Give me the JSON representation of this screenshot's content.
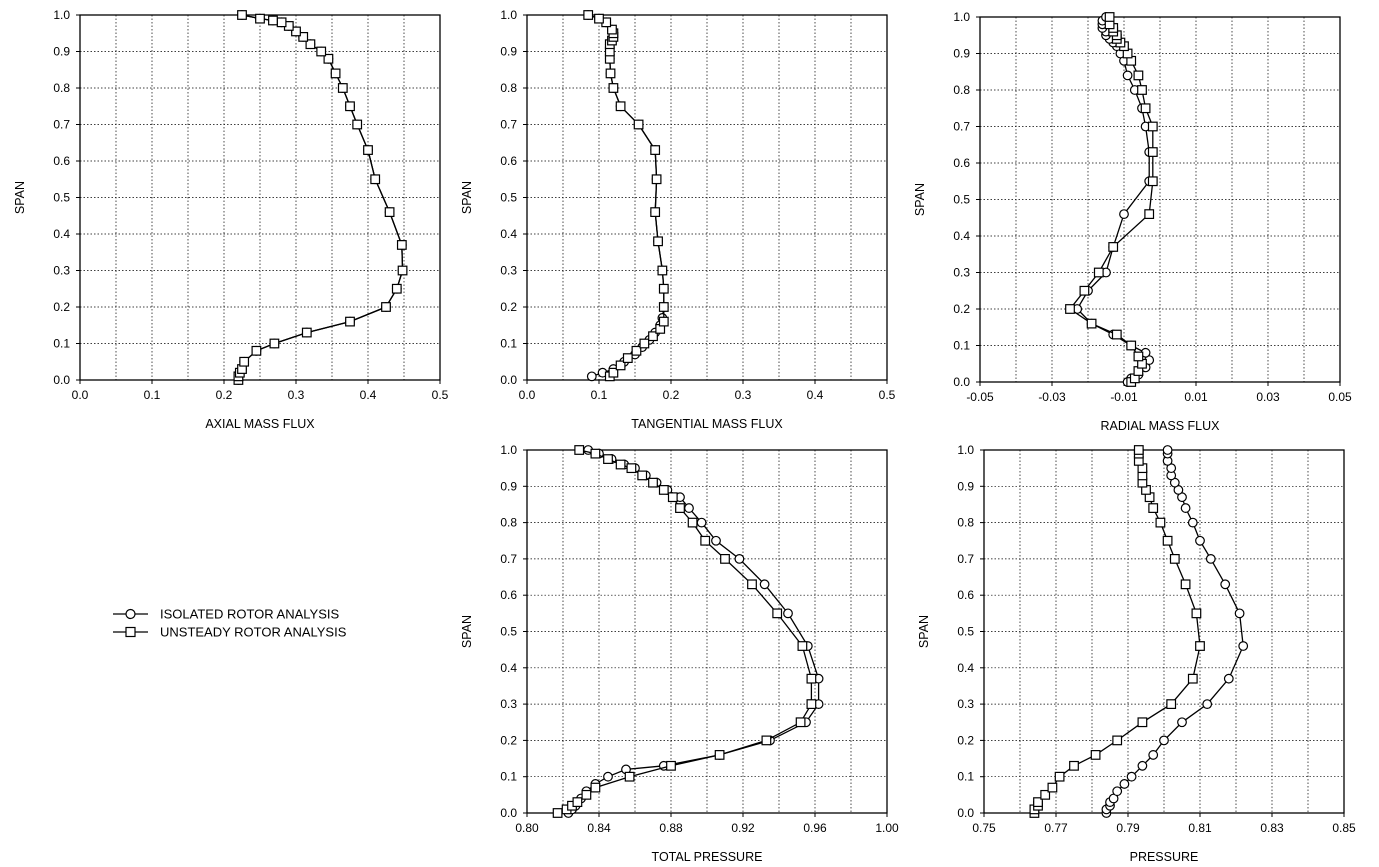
{
  "legend": {
    "entries": [
      {
        "label": "ISOLATED ROTOR ANALYSIS",
        "marker": "circle"
      },
      {
        "label": "UNSTEADY ROTOR ANALYSIS",
        "marker": "square"
      }
    ]
  },
  "colors": {
    "line": "#000000",
    "grid": "#000000",
    "background": "#ffffff"
  },
  "chart_data": [
    {
      "type": "line",
      "xlabel": "AXIAL MASS FLUX",
      "ylabel": "SPAN",
      "xlim": [
        0.0,
        0.5
      ],
      "ylim": [
        0.0,
        1.0
      ],
      "xticks": [
        "0.0",
        "0.1",
        "0.2",
        "0.3",
        "0.4",
        "0.5"
      ],
      "yticks": [
        "0.0",
        "0.1",
        "0.2",
        "0.3",
        "0.4",
        "0.5",
        "0.6",
        "0.7",
        "0.8",
        "0.9",
        "1.0"
      ],
      "grid": true,
      "series": [
        {
          "marker": "circle",
          "x": [
            0.22,
            0.22,
            0.222,
            0.225,
            0.228,
            0.245,
            0.27,
            0.315,
            0.375,
            0.425,
            0.44,
            0.448,
            0.447,
            0.43,
            0.41,
            0.4,
            0.385,
            0.375,
            0.365,
            0.355,
            0.345,
            0.335,
            0.32,
            0.31,
            0.3,
            0.29,
            0.28,
            0.268,
            0.25,
            0.225
          ],
          "y": [
            0.0,
            0.01,
            0.02,
            0.03,
            0.05,
            0.08,
            0.1,
            0.13,
            0.16,
            0.2,
            0.25,
            0.3,
            0.37,
            0.46,
            0.55,
            0.63,
            0.7,
            0.75,
            0.8,
            0.84,
            0.88,
            0.9,
            0.92,
            0.94,
            0.955,
            0.97,
            0.98,
            0.985,
            0.99,
            1.0
          ]
        },
        {
          "marker": "square",
          "x": [
            0.22,
            0.22,
            0.222,
            0.225,
            0.228,
            0.245,
            0.27,
            0.315,
            0.375,
            0.425,
            0.44,
            0.448,
            0.447,
            0.43,
            0.41,
            0.4,
            0.385,
            0.375,
            0.365,
            0.355,
            0.345,
            0.335,
            0.32,
            0.31,
            0.3,
            0.29,
            0.28,
            0.268,
            0.25,
            0.225
          ],
          "y": [
            0.0,
            0.01,
            0.02,
            0.03,
            0.05,
            0.08,
            0.1,
            0.13,
            0.16,
            0.2,
            0.25,
            0.3,
            0.37,
            0.46,
            0.55,
            0.63,
            0.7,
            0.75,
            0.8,
            0.84,
            0.88,
            0.9,
            0.92,
            0.94,
            0.955,
            0.97,
            0.98,
            0.985,
            0.99,
            1.0
          ]
        }
      ]
    },
    {
      "type": "line",
      "xlabel": "TANGENTIAL MASS FLUX",
      "ylabel": "SPAN",
      "xlim": [
        0.0,
        0.5
      ],
      "ylim": [
        0.0,
        1.0
      ],
      "xticks": [
        "0.0",
        "0.1",
        "0.2",
        "0.3",
        "0.4",
        "0.5"
      ],
      "yticks": [
        "0.0",
        "0.1",
        "0.2",
        "0.3",
        "0.4",
        "0.5",
        "0.6",
        "0.7",
        "0.8",
        "0.9",
        "1.0"
      ],
      "grid": true,
      "series": [
        {
          "marker": "circle",
          "x": [
            0.09,
            0.105,
            0.12,
            0.135,
            0.15,
            0.16,
            0.17,
            0.178,
            0.185,
            0.188,
            0.19,
            0.19,
            0.188,
            0.182,
            0.178,
            0.18,
            0.178,
            0.155,
            0.13,
            0.12,
            0.116,
            0.115,
            0.115,
            0.115,
            0.118,
            0.12,
            0.12,
            0.118,
            0.11,
            0.1,
            0.085
          ],
          "y": [
            0.01,
            0.02,
            0.03,
            0.05,
            0.07,
            0.09,
            0.11,
            0.13,
            0.15,
            0.17,
            0.2,
            0.25,
            0.3,
            0.38,
            0.46,
            0.55,
            0.63,
            0.7,
            0.75,
            0.8,
            0.84,
            0.88,
            0.9,
            0.92,
            0.93,
            0.94,
            0.95,
            0.96,
            0.98,
            0.99,
            1.0
          ]
        },
        {
          "marker": "square",
          "x": [
            0.115,
            0.12,
            0.13,
            0.14,
            0.152,
            0.163,
            0.175,
            0.185,
            0.19,
            0.19,
            0.19,
            0.188,
            0.182,
            0.178,
            0.18,
            0.178,
            0.155,
            0.13,
            0.12,
            0.116,
            0.115,
            0.115,
            0.115,
            0.118,
            0.12,
            0.12,
            0.118,
            0.11,
            0.1,
            0.085
          ],
          "y": [
            0.01,
            0.02,
            0.04,
            0.06,
            0.08,
            0.1,
            0.12,
            0.14,
            0.16,
            0.2,
            0.25,
            0.3,
            0.38,
            0.46,
            0.55,
            0.63,
            0.7,
            0.75,
            0.8,
            0.84,
            0.88,
            0.9,
            0.92,
            0.93,
            0.94,
            0.95,
            0.96,
            0.98,
            0.99,
            1.0
          ]
        }
      ]
    },
    {
      "type": "line",
      "xlabel": "RADIAL MASS FLUX",
      "ylabel": "SPAN",
      "xlim": [
        -0.05,
        0.05
      ],
      "ylim": [
        0.0,
        1.0
      ],
      "xticks": [
        "-0.05",
        "-0.03",
        "-0.01",
        "0.01",
        "0.03",
        "0.05"
      ],
      "yticks": [
        "0.0",
        "0.1",
        "0.2",
        "0.3",
        "0.4",
        "0.5",
        "0.6",
        "0.7",
        "0.8",
        "0.9",
        "1.0"
      ],
      "grid": true,
      "series": [
        {
          "marker": "circle",
          "x": [
            -0.009,
            -0.008,
            -0.006,
            -0.004,
            -0.003,
            -0.004,
            -0.008,
            -0.013,
            -0.019,
            -0.023,
            -0.02,
            -0.015,
            -0.013,
            -0.01,
            -0.003,
            -0.003,
            -0.004,
            -0.005,
            -0.007,
            -0.009,
            -0.01,
            -0.011,
            -0.012,
            -0.013,
            -0.014,
            -0.015,
            -0.015,
            -0.016,
            -0.016,
            -0.016,
            -0.015
          ],
          "y": [
            0.0,
            0.01,
            0.02,
            0.04,
            0.06,
            0.08,
            0.1,
            0.13,
            0.16,
            0.2,
            0.25,
            0.3,
            0.37,
            0.46,
            0.55,
            0.63,
            0.7,
            0.75,
            0.8,
            0.84,
            0.88,
            0.9,
            0.92,
            0.93,
            0.94,
            0.95,
            0.96,
            0.97,
            0.98,
            0.99,
            1.0
          ]
        },
        {
          "marker": "square",
          "x": [
            -0.008,
            -0.007,
            -0.006,
            -0.005,
            -0.006,
            -0.008,
            -0.012,
            -0.019,
            -0.025,
            -0.021,
            -0.017,
            -0.013,
            -0.003,
            -0.002,
            -0.002,
            -0.002,
            -0.004,
            -0.005,
            -0.006,
            -0.008,
            -0.009,
            -0.01,
            -0.011,
            -0.012,
            -0.012,
            -0.013,
            -0.013,
            -0.014,
            -0.014
          ],
          "y": [
            0.0,
            0.01,
            0.03,
            0.05,
            0.07,
            0.1,
            0.13,
            0.16,
            0.2,
            0.25,
            0.3,
            0.37,
            0.46,
            0.55,
            0.63,
            0.7,
            0.75,
            0.8,
            0.84,
            0.88,
            0.9,
            0.92,
            0.93,
            0.94,
            0.95,
            0.96,
            0.97,
            0.98,
            1.0
          ]
        }
      ]
    },
    {
      "type": "line",
      "xlabel": "TOTAL PRESSURE",
      "ylabel": "SPAN",
      "xlim": [
        0.8,
        1.0
      ],
      "ylim": [
        0.0,
        1.0
      ],
      "xticks": [
        "0.80",
        "0.84",
        "0.88",
        "0.92",
        "0.96",
        "1.00"
      ],
      "yticks": [
        "0.0",
        "0.1",
        "0.2",
        "0.3",
        "0.4",
        "0.5",
        "0.6",
        "0.7",
        "0.8",
        "0.9",
        "1.0"
      ],
      "grid": true,
      "series": [
        {
          "marker": "circle",
          "x": [
            0.823,
            0.825,
            0.827,
            0.83,
            0.833,
            0.838,
            0.845,
            0.855,
            0.876,
            0.907,
            0.935,
            0.955,
            0.962,
            0.962,
            0.956,
            0.945,
            0.932,
            0.918,
            0.905,
            0.897,
            0.89,
            0.885,
            0.878,
            0.872,
            0.866,
            0.86,
            0.854,
            0.847,
            0.84,
            0.834
          ],
          "y": [
            0.0,
            0.01,
            0.02,
            0.04,
            0.06,
            0.08,
            0.1,
            0.12,
            0.13,
            0.16,
            0.2,
            0.25,
            0.3,
            0.37,
            0.46,
            0.55,
            0.63,
            0.7,
            0.75,
            0.8,
            0.84,
            0.87,
            0.89,
            0.91,
            0.93,
            0.95,
            0.96,
            0.975,
            0.99,
            1.0
          ]
        },
        {
          "marker": "square",
          "x": [
            0.817,
            0.822,
            0.825,
            0.828,
            0.833,
            0.838,
            0.857,
            0.88,
            0.907,
            0.933,
            0.952,
            0.958,
            0.958,
            0.953,
            0.939,
            0.925,
            0.91,
            0.899,
            0.892,
            0.885,
            0.881,
            0.876,
            0.87,
            0.864,
            0.858,
            0.852,
            0.845,
            0.838,
            0.829
          ],
          "y": [
            0.0,
            0.01,
            0.02,
            0.03,
            0.05,
            0.07,
            0.1,
            0.13,
            0.16,
            0.2,
            0.25,
            0.3,
            0.37,
            0.46,
            0.55,
            0.63,
            0.7,
            0.75,
            0.8,
            0.84,
            0.87,
            0.89,
            0.91,
            0.93,
            0.95,
            0.96,
            0.975,
            0.99,
            1.0
          ]
        }
      ]
    },
    {
      "type": "line",
      "xlabel": "PRESSURE",
      "ylabel": "SPAN",
      "xlim": [
        0.75,
        0.85
      ],
      "ylim": [
        0.0,
        1.0
      ],
      "xticks": [
        "0.75",
        "0.77",
        "0.79",
        "0.81",
        "0.83",
        "0.85"
      ],
      "yticks": [
        "0.0",
        "0.1",
        "0.2",
        "0.3",
        "0.4",
        "0.5",
        "0.6",
        "0.7",
        "0.8",
        "0.9",
        "1.0"
      ],
      "grid": true,
      "series": [
        {
          "marker": "circle",
          "x": [
            0.784,
            0.784,
            0.785,
            0.785,
            0.786,
            0.787,
            0.789,
            0.791,
            0.794,
            0.797,
            0.8,
            0.805,
            0.812,
            0.818,
            0.822,
            0.821,
            0.817,
            0.813,
            0.81,
            0.808,
            0.806,
            0.805,
            0.804,
            0.803,
            0.802,
            0.802,
            0.801,
            0.801,
            0.801
          ],
          "y": [
            0.0,
            0.01,
            0.02,
            0.03,
            0.04,
            0.06,
            0.08,
            0.1,
            0.13,
            0.16,
            0.2,
            0.25,
            0.3,
            0.37,
            0.46,
            0.55,
            0.63,
            0.7,
            0.75,
            0.8,
            0.84,
            0.87,
            0.89,
            0.91,
            0.93,
            0.95,
            0.97,
            0.99,
            1.0
          ]
        },
        {
          "marker": "square",
          "x": [
            0.764,
            0.764,
            0.765,
            0.765,
            0.767,
            0.769,
            0.771,
            0.775,
            0.781,
            0.787,
            0.794,
            0.802,
            0.808,
            0.81,
            0.809,
            0.806,
            0.803,
            0.801,
            0.799,
            0.797,
            0.796,
            0.795,
            0.794,
            0.794,
            0.794,
            0.793,
            0.793,
            0.793
          ],
          "y": [
            0.0,
            0.01,
            0.02,
            0.03,
            0.05,
            0.07,
            0.1,
            0.13,
            0.16,
            0.2,
            0.25,
            0.3,
            0.37,
            0.46,
            0.55,
            0.63,
            0.7,
            0.75,
            0.8,
            0.84,
            0.87,
            0.89,
            0.91,
            0.93,
            0.95,
            0.97,
            0.99,
            1.0
          ]
        }
      ]
    }
  ]
}
